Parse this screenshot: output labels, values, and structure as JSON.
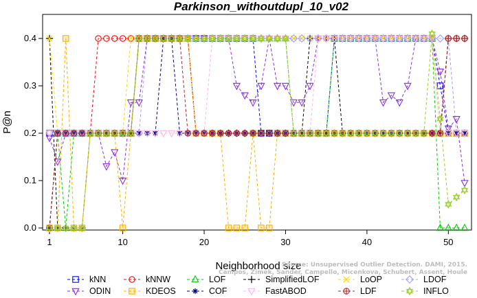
{
  "chart_data": {
    "type": "line",
    "title": "Parkinson_withoutdupl_10_v02",
    "xlabel": "Neighborhood size",
    "ylabel": "P@n",
    "xlim": [
      0,
      52
    ],
    "ylim": [
      0,
      0.4
    ],
    "x_ticks": [
      1,
      10,
      20,
      30,
      40,
      50
    ],
    "y_ticks": [
      "0.0",
      "0.1",
      "0.2",
      "0.3",
      "0.4"
    ],
    "grid": false,
    "legend_position": "bottom",
    "x": [
      1,
      2,
      3,
      4,
      5,
      6,
      7,
      8,
      9,
      10,
      11,
      12,
      13,
      14,
      15,
      16,
      17,
      18,
      19,
      20,
      21,
      22,
      23,
      24,
      25,
      26,
      27,
      28,
      29,
      30,
      31,
      32,
      33,
      34,
      35,
      36,
      37,
      38,
      39,
      40,
      41,
      42,
      43,
      44,
      45,
      46,
      47,
      48,
      49,
      50,
      51,
      52
    ],
    "series": [
      {
        "name": "kNN",
        "color": "#0000ff",
        "marker": "square",
        "values": [
          0.2,
          0.2,
          0.2,
          0.2,
          0.2,
          0.2,
          0.2,
          0.2,
          0.2,
          0.2,
          0.2,
          0.4,
          0.4,
          0.4,
          0.4,
          0.4,
          0.4,
          0.4,
          0.4,
          0.4,
          0.4,
          0.4,
          0.4,
          0.4,
          0.4,
          0.4,
          0.2,
          0.2,
          0.2,
          0.2,
          0.2,
          0.2,
          0.2,
          0.2,
          0.2,
          0.4,
          0.4,
          0.4,
          0.4,
          0.4,
          0.4,
          0.4,
          0.4,
          0.4,
          0.4,
          0.4,
          0.4,
          0.4,
          0.3,
          0.2,
          0.2,
          0.2
        ]
      },
      {
        "name": "kNNW",
        "color": "#ff0000",
        "marker": "circle",
        "values": [
          0,
          0.2,
          0.2,
          0.2,
          0.2,
          0.2,
          0.4,
          0.4,
          0.4,
          0.4,
          0.4,
          0.4,
          0.4,
          0.4,
          0.4,
          0.4,
          0.4,
          0.4,
          0.2,
          0.2,
          0.2,
          0.2,
          0.2,
          0.2,
          0.2,
          0.2,
          0.2,
          0.2,
          0.2,
          0.2,
          0.2,
          0.2,
          0.2,
          0.2,
          0.2,
          0.2,
          0.2,
          0.2,
          0.2,
          0.2,
          0.2,
          0.2,
          0.2,
          0.2,
          0.2,
          0.2,
          0.2,
          0.2,
          0.2,
          0.4,
          0.4,
          0.4
        ]
      },
      {
        "name": "LOF",
        "color": "#00cc00",
        "marker": "triangle-up",
        "values": [
          0,
          0.2,
          0,
          0.2,
          0.2,
          0.2,
          0.2,
          0.2,
          0.2,
          0.2,
          0.2,
          0.4,
          0.4,
          0.4,
          0.4,
          0.4,
          0.4,
          0.4,
          0.4,
          0.4,
          0.4,
          0.4,
          0.4,
          0.4,
          0.4,
          0.4,
          0.4,
          0.4,
          0.4,
          0.4,
          0.2,
          0.2,
          0.2,
          0.2,
          0.2,
          0.4,
          0.4,
          0.4,
          0.4,
          0.4,
          0.4,
          0.4,
          0.4,
          0.4,
          0.4,
          0.4,
          0.4,
          0.4,
          0,
          0,
          0,
          0
        ]
      },
      {
        "name": "SimplifiedLOF",
        "color": "#000000",
        "marker": "plus",
        "values": [
          0.4,
          0,
          0,
          0,
          0,
          0.2,
          0.2,
          0.2,
          0.2,
          0.2,
          0.2,
          0.4,
          0.4,
          0.4,
          0.4,
          0.4,
          0.4,
          0.4,
          0.2,
          0.2,
          0.2,
          0.2,
          0.2,
          0.2,
          0.2,
          0.2,
          0.2,
          0.2,
          0.2,
          0.2,
          0.2,
          0.2,
          0.4,
          0.4,
          0.4,
          0.4,
          0.2,
          0.2,
          0.2,
          0.2,
          0.2,
          0.2,
          0.2,
          0.2,
          0.2,
          0.2,
          0.2,
          0.2,
          0.2,
          0.4,
          0.4,
          0.4
        ]
      },
      {
        "name": "LoOP",
        "color": "#ffd700",
        "marker": "cross",
        "values": [
          0.4,
          0.2,
          0.2,
          0.2,
          0.2,
          0.2,
          0.2,
          0.2,
          0.2,
          0.2,
          0.4,
          0.4,
          0.4,
          0.4,
          0.4,
          0.4,
          0.4,
          0.4,
          0.4,
          0.4,
          0.4,
          0.4,
          0.4,
          0.4,
          0.4,
          0.4,
          0.4,
          0.4,
          0.4,
          0.4,
          0.4,
          0.4,
          0.4,
          0.4,
          0.4,
          0.4,
          0.4,
          0.4,
          0.4,
          0.4,
          0.4,
          0.4,
          0.4,
          0.4,
          0.4,
          0.4,
          0.4,
          0.4,
          0.2,
          0.2,
          0.2,
          0.2
        ]
      },
      {
        "name": "LDOF",
        "color": "#a0a0ff",
        "marker": "diamond",
        "values": [
          0.2,
          0.2,
          0.2,
          0.2,
          0.2,
          0.2,
          0.2,
          0.2,
          0.2,
          0.2,
          0.2,
          0.2,
          0.4,
          0.4,
          0.4,
          0.4,
          0.4,
          0.4,
          0.4,
          0.4,
          0.4,
          0.4,
          0.4,
          0.4,
          0.4,
          0.4,
          0.4,
          0.4,
          0.4,
          0.4,
          0.4,
          0.4,
          0.4,
          0.4,
          0.4,
          0.4,
          0.4,
          0.4,
          0.4,
          0.4,
          0.4,
          0.4,
          0.4,
          0.4,
          0.4,
          0.4,
          0.4,
          0.4,
          0.4,
          0.4,
          0.2,
          0.2
        ]
      },
      {
        "name": "ODIN",
        "color": "#8a2be2",
        "marker": "triangle-down",
        "values": [
          0.19,
          0.14,
          0.2,
          0.2,
          0.2,
          0.2,
          0.2,
          0.13,
          0.16,
          0.1,
          0.265,
          0.265,
          0.4,
          0.4,
          0.4,
          0.4,
          0.4,
          0.4,
          0.4,
          0.4,
          0.4,
          0.4,
          0.4,
          0.3,
          0.28,
          0.265,
          0.3,
          0.4,
          0.3,
          0.3,
          0.265,
          0.265,
          0.3,
          0.4,
          0.4,
          0.4,
          0.4,
          0.4,
          0.4,
          0.4,
          0.4,
          0.265,
          0.28,
          0.265,
          0.3,
          0.4,
          0.4,
          0.4,
          0.33,
          0.21,
          0.23,
          0.095
        ]
      },
      {
        "name": "KDEOS",
        "color": "#ffb000",
        "marker": "square-filled",
        "values": [
          0,
          0,
          0.4,
          0,
          0,
          0.2,
          0.2,
          0.2,
          0.2,
          0,
          0.2,
          0.4,
          0.4,
          0.4,
          0.4,
          0.4,
          0.4,
          0.4,
          0.2,
          0.2,
          0.2,
          0.2,
          0,
          0,
          0,
          0.2,
          0,
          0,
          0.2,
          0.2,
          0.2,
          0.2,
          0.2,
          0.2,
          0.2,
          0.2,
          0.2,
          0.2,
          0.2,
          0.2,
          0.2,
          0.2,
          0.2,
          0.2,
          0.2,
          0.2,
          0.2,
          0.2,
          0.2,
          0.2,
          0.2,
          0.2
        ]
      },
      {
        "name": "COF",
        "color": "#000080",
        "marker": "asterisk",
        "values": [
          0,
          0.2,
          0.2,
          0.2,
          0.2,
          0.2,
          0.2,
          0.2,
          0.2,
          0.2,
          0.2,
          0.2,
          0.2,
          0.2,
          0.4,
          0.4,
          0.2,
          0.2,
          0.2,
          0.2,
          0.2,
          0.2,
          0.2,
          0.2,
          0.2,
          0.2,
          0.2,
          0.2,
          0.2,
          0.2,
          0.2,
          0.2,
          0.2,
          0.2,
          0.2,
          0.2,
          0.2,
          0.2,
          0.2,
          0.2,
          0.2,
          0.2,
          0.2,
          0.2,
          0.2,
          0.2,
          0.2,
          0.2,
          0.2,
          0.2,
          0.2,
          0.2
        ]
      },
      {
        "name": "FastABOD",
        "color": "#ffb6e6",
        "marker": "triangle-down",
        "values": [
          0.2,
          0.2,
          0.2,
          0.2,
          0.2,
          0.2,
          0.2,
          0.2,
          0.2,
          0.2,
          0.2,
          0.2,
          0.2,
          0.2,
          0.2,
          0.2,
          0.2,
          0.2,
          0.2,
          0.2,
          0.4,
          0.4,
          0.4,
          0.4,
          0.4,
          0.4,
          0.4,
          0.4,
          0.4,
          0.4,
          0.2,
          0.2,
          0.2,
          0.4,
          0.4,
          0.4,
          0.4,
          0.4,
          0.4,
          0.4,
          0.4,
          0.4,
          0.4,
          0.4,
          0.4,
          0.4,
          0.4,
          0.4,
          0.2,
          0.2,
          0.2,
          0.2
        ]
      },
      {
        "name": "LDF",
        "color": "#b22222",
        "marker": "circle-plus",
        "values": [
          0,
          0.2,
          0.2,
          0.2,
          0.2,
          0.2,
          0.2,
          0.2,
          0.2,
          0.2,
          0.2,
          0.4,
          0.4,
          0.4,
          0.4,
          0.4,
          0.4,
          0.2,
          0.2,
          0.2,
          0.2,
          0.2,
          0.2,
          0.2,
          0.2,
          0.2,
          0.2,
          0.2,
          0.2,
          0.2,
          0.2,
          0.2,
          0.2,
          0.2,
          0.2,
          0.2,
          0.2,
          0.2,
          0.2,
          0.2,
          0.2,
          0.2,
          0.2,
          0.2,
          0.2,
          0.2,
          0.2,
          0.2,
          0.2,
          0.4,
          0.4,
          0.4
        ]
      },
      {
        "name": "INFLO",
        "color": "#9acd32",
        "marker": "hexagram",
        "values": [
          0,
          0,
          0,
          0,
          0,
          0.2,
          0.2,
          0.2,
          0.2,
          0.2,
          0.2,
          0.4,
          0.4,
          0.4,
          0.4,
          0.4,
          0.4,
          0.4,
          0.4,
          0.4,
          0.4,
          0.4,
          0.4,
          0.4,
          0.4,
          0.4,
          0.4,
          0.4,
          0.4,
          0.4,
          0.2,
          0.2,
          0.2,
          0.2,
          0.2,
          0.2,
          0.2,
          0.2,
          0.2,
          0.2,
          0.2,
          0.2,
          0.2,
          0.2,
          0.2,
          0.2,
          0.2,
          0.41,
          0.23,
          0.05,
          0.065,
          0.08
        ]
      }
    ],
    "watermark": "Source: Unsupervised Outlier Detection. DAMI, 2015.\nCampos, Zimek, Sander, Campello, Micenkova, Schubert, Assent, Houle"
  }
}
